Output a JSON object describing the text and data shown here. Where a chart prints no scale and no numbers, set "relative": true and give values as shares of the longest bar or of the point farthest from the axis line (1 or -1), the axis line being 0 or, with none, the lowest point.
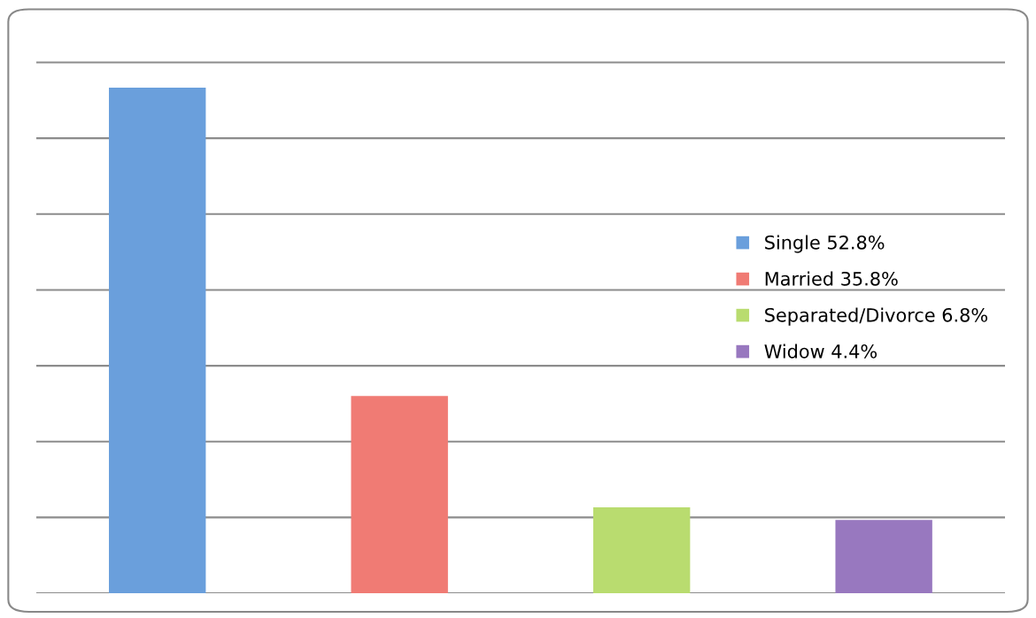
{
  "chart_data": {
    "type": "bar",
    "relative": true,
    "categories": [
      null,
      null,
      null,
      null
    ],
    "series": [
      {
        "name": "Single 52.8%",
        "color": "#6a9fdc",
        "values": [
          1,
          null,
          null,
          null
        ]
      },
      {
        "name": "Married 35.8%",
        "color": "#f07b74",
        "values": [
          null,
          0.39,
          null,
          null
        ]
      },
      {
        "name": "Separated/Divorce 6.8%",
        "color": "#b9dc6f",
        "values": [
          null,
          null,
          0.17,
          null
        ]
      },
      {
        "name": "Widow 4.4%",
        "color": "#9878bf",
        "values": [
          null,
          null,
          null,
          0.145
        ]
      }
    ],
    "stacked": true,
    "grid": "y",
    "legend": "right"
  }
}
